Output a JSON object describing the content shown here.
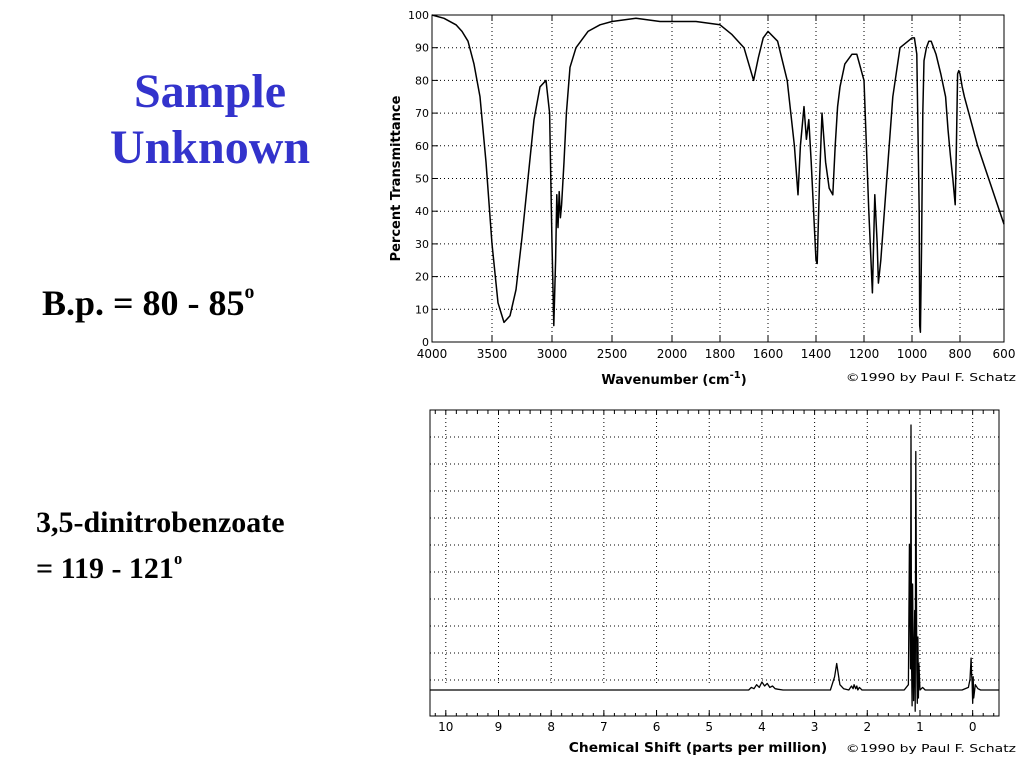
{
  "slide": {
    "title_line1": "Sample",
    "title_line2": "Unknown",
    "bp_text": "B.p. = 80 - 85",
    "bp_sup": "o",
    "dnb_line1": "3,5-dinitrobenzoate",
    "dnb_line2": "= 119 - 121",
    "dnb_sup": "o",
    "title_color": "#3333cc"
  },
  "chart_data": [
    {
      "type": "line",
      "ylabel": "Percent  Transmittance",
      "xlabel_text": "Wavenumber (cm",
      "xlabel_sup": "-1",
      "xlabel_end": ")",
      "credit": "©1990 by Paul F. Schatz",
      "xlim": [
        4000,
        600
      ],
      "ylim": [
        0,
        100
      ],
      "x_ticks": [
        4000,
        3500,
        3000,
        2500,
        2000,
        1800,
        1600,
        1400,
        1200,
        1000,
        800,
        600
      ],
      "y_ticks": [
        0,
        10,
        20,
        30,
        40,
        50,
        60,
        70,
        80,
        90,
        100
      ],
      "grid": true,
      "series": [
        {
          "x": [
            4000,
            3900,
            3800,
            3750,
            3700,
            3650,
            3600,
            3550,
            3500,
            3450,
            3400,
            3350,
            3300,
            3250,
            3200,
            3150,
            3100,
            3050,
            3020,
            3000,
            2985,
            2970,
            2960,
            2950,
            2940,
            2930,
            2920,
            2900,
            2880,
            2850,
            2800,
            2700,
            2600,
            2500,
            2300,
            2100,
            2000,
            1900,
            1800,
            1750,
            1700,
            1680,
            1660,
            1640,
            1620,
            1600,
            1560,
            1520,
            1490,
            1475,
            1465,
            1450,
            1440,
            1430,
            1420,
            1400,
            1395,
            1385,
            1375,
            1370,
            1360,
            1345,
            1330,
            1320,
            1310,
            1300,
            1280,
            1250,
            1230,
            1200,
            1180,
            1165,
            1160,
            1155,
            1145,
            1140,
            1130,
            1120,
            1100,
            1080,
            1050,
            1000,
            990,
            980,
            970,
            968,
            965,
            960,
            955,
            950,
            940,
            930,
            920,
            910,
            900,
            880,
            860,
            850,
            840,
            830,
            820,
            815,
            810,
            805,
            800,
            790,
            780,
            760,
            740,
            720,
            700,
            680,
            660,
            640,
            620,
            600
          ],
          "y": [
            100,
            99,
            97,
            95,
            92,
            85,
            75,
            55,
            30,
            12,
            6,
            8,
            16,
            32,
            50,
            68,
            78,
            80,
            70,
            30,
            5,
            25,
            45,
            35,
            46,
            38,
            42,
            55,
            70,
            84,
            90,
            95,
            97,
            98,
            99,
            98,
            98,
            98,
            97,
            94,
            90,
            85,
            80,
            87,
            93,
            95,
            92,
            80,
            60,
            45,
            60,
            72,
            62,
            68,
            55,
            25,
            24,
            50,
            70,
            65,
            55,
            47,
            45,
            60,
            72,
            78,
            85,
            88,
            88,
            80,
            40,
            15,
            30,
            45,
            30,
            18,
            25,
            35,
            55,
            75,
            90,
            93,
            93,
            88,
            40,
            5,
            3,
            30,
            70,
            86,
            90,
            92,
            92,
            90,
            88,
            82,
            75,
            65,
            57,
            50,
            42,
            60,
            82,
            83,
            82,
            78,
            75,
            70,
            65,
            60,
            56,
            52,
            48,
            44,
            40,
            36
          ]
        }
      ]
    },
    {
      "type": "line",
      "xlabel": "Chemical Shift (parts per million)",
      "credit": "©1990 by Paul F. Schatz",
      "xlim": [
        10.3,
        -0.5
      ],
      "ylim": [
        -10,
        100
      ],
      "x_ticks": [
        10,
        9,
        8,
        7,
        6,
        5,
        4,
        3,
        2,
        1,
        0
      ],
      "grid": true,
      "series": [
        {
          "x": [
            10.3,
            4.25,
            4.2,
            4.15,
            4.1,
            4.05,
            4.0,
            3.95,
            3.9,
            3.85,
            3.8,
            3.75,
            3.7,
            3.6,
            2.7,
            2.62,
            2.58,
            2.55,
            2.52,
            2.45,
            2.35,
            2.3,
            2.27,
            2.25,
            2.22,
            2.2,
            2.18,
            2.15,
            2.1,
            2.0,
            1.3,
            1.22,
            1.2,
            1.18,
            1.17,
            1.16,
            1.15,
            1.14,
            1.12,
            1.1,
            1.09,
            1.08,
            1.06,
            1.05,
            1.04,
            1.03,
            1.02,
            1.0,
            0.95,
            0.9,
            0.6,
            0.2,
            0.08,
            0.05,
            0.03,
            0.02,
            0.01,
            0.0,
            -0.01,
            -0.02,
            -0.05,
            -0.1,
            -0.15,
            -0.5
          ],
          "y": [
            0,
            0,
            1,
            0.5,
            2,
            1,
            3,
            1.5,
            2.5,
            1,
            1.5,
            0.5,
            0.3,
            0,
            0,
            5,
            10,
            6,
            2,
            0.5,
            0,
            1.5,
            0.5,
            2,
            0.5,
            1.5,
            0,
            1,
            0,
            0,
            0,
            2,
            55,
            8,
            100,
            12,
            -6,
            40,
            -4,
            30,
            -8,
            90,
            8,
            -5,
            20,
            -3,
            10,
            0,
            1,
            0,
            0,
            0,
            1,
            4,
            12,
            6,
            3,
            -5,
            5,
            -3,
            2,
            0.5,
            0,
            0
          ]
        }
      ]
    }
  ]
}
